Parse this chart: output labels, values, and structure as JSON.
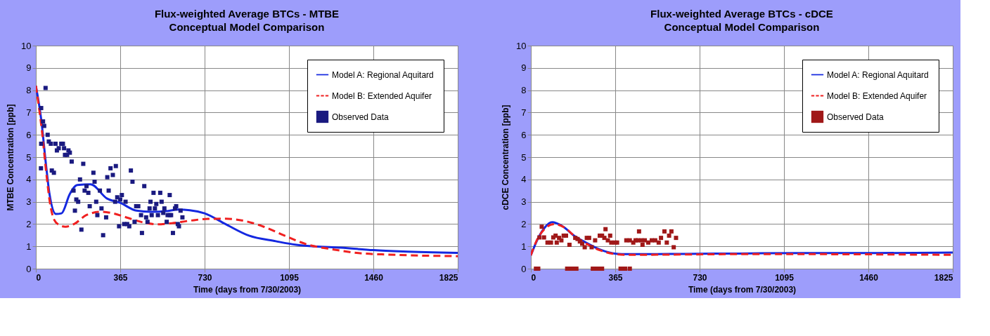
{
  "chart_data": [
    {
      "type": "line",
      "title": "Flux-weighted Average BTCs - MTBE",
      "subtitle": "Conceptual Model Comparison",
      "xlabel": "Time (days from 7/30/2003)",
      "ylabel": "MTBE Concentration [ppb]",
      "xlim": [
        0,
        1825
      ],
      "xticks": [
        0,
        365,
        730,
        1095,
        1460,
        1825
      ],
      "ylim": [
        0,
        10
      ],
      "yticks": [
        0,
        1,
        2,
        3,
        4,
        5,
        6,
        7,
        8,
        9,
        10
      ],
      "grid": true,
      "legend": "top right",
      "series": [
        {
          "name": "Model A: Regional Aquitard",
          "type": "line",
          "line_style": "solid",
          "color": "#1428e0",
          "x": [
            0,
            23,
            45,
            59,
            87,
            111,
            147,
            179,
            237,
            307,
            365,
            436,
            500,
            564,
            615,
            666,
            730,
            820,
            922,
            1038,
            1127,
            1204,
            1319,
            1460,
            1588,
            1825
          ],
          "values": [
            8.2,
            6.7,
            4.55,
            3.35,
            2.45,
            2.48,
            3.35,
            3.75,
            3.78,
            3.15,
            2.95,
            2.6,
            2.55,
            2.58,
            2.65,
            2.62,
            2.48,
            2.0,
            1.48,
            1.23,
            1.07,
            1.0,
            0.94,
            0.83,
            0.77,
            0.71
          ]
        },
        {
          "name": "Model B: Extended Aquifer",
          "type": "line",
          "line_style": "dashed",
          "color": "#f02020",
          "x": [
            0,
            26,
            45,
            61,
            79,
            102,
            128,
            167,
            218,
            282,
            333,
            397,
            461,
            525,
            589,
            666,
            743,
            820,
            897,
            986,
            1076,
            1179,
            1281,
            1396,
            1524,
            1652,
            1825
          ],
          "values": [
            8.2,
            6.2,
            4.3,
            2.95,
            2.2,
            1.95,
            1.88,
            2.01,
            2.4,
            2.55,
            2.48,
            2.28,
            2.08,
            1.99,
            2.04,
            2.15,
            2.23,
            2.24,
            2.15,
            1.88,
            1.48,
            1.07,
            0.87,
            0.7,
            0.63,
            0.59,
            0.56
          ]
        },
        {
          "name": "Observed Data",
          "type": "scatter",
          "marker": "square",
          "color": "#1a1a80",
          "x": [
            42,
            23,
            31,
            36,
            23,
            22,
            51,
            56,
            65,
            69,
            78,
            85,
            91,
            99,
            110,
            117,
            122,
            126,
            135,
            141,
            147,
            155,
            163,
            169,
            175,
            183,
            191,
            197,
            205,
            211,
            219,
            227,
            233,
            249,
            254,
            261,
            266,
            277,
            284,
            291,
            304,
            315,
            309,
            323,
            333,
            346,
            343,
            352,
            360,
            372,
            365,
            382,
            388,
            395,
            404,
            411,
            418,
            427,
            434,
            443,
            455,
            459,
            469,
            477,
            483,
            492,
            496,
            501,
            509,
            515,
            521,
            528,
            538,
            544,
            551,
            556,
            566,
            570,
            579,
            579,
            585,
            593,
            602,
            607,
            614,
            619,
            626,
            634
          ],
          "values": [
            8.1,
            7.2,
            6.6,
            6.4,
            5.6,
            4.5,
            6.0,
            5.7,
            5.6,
            4.4,
            4.3,
            5.6,
            5.3,
            5.4,
            5.6,
            5.6,
            5.4,
            5.1,
            5.1,
            5.3,
            5.2,
            4.8,
            3.5,
            2.6,
            3.1,
            3.0,
            4.0,
            1.75,
            4.7,
            3.5,
            3.7,
            3.4,
            2.8,
            4.3,
            3.9,
            3.0,
            2.4,
            3.5,
            2.7,
            1.5,
            2.3,
            3.5,
            4.1,
            4.5,
            4.2,
            4.6,
            3.0,
            3.2,
            1.9,
            3.3,
            3.1,
            2.0,
            3.0,
            2.0,
            1.9,
            4.4,
            3.9,
            2.1,
            2.8,
            2.8,
            2.4,
            1.6,
            3.7,
            2.3,
            2.1,
            2.7,
            3.0,
            2.4,
            3.4,
            2.7,
            2.9,
            2.4,
            3.4,
            3.0,
            2.5,
            2.7,
            2.1,
            2.4,
            3.3,
            2.4,
            2.4,
            1.6,
            2.7,
            2.8,
            2.0,
            1.9,
            2.6,
            2.3
          ]
        }
      ]
    },
    {
      "type": "line",
      "title": "Flux-weighted Average BTCs - cDCE",
      "subtitle": "Conceptual Model Comparison",
      "xlabel": "Time (days from 7/30/2003)",
      "ylabel": "cDCE Concentration [ppb]",
      "xlim": [
        0,
        1825
      ],
      "xticks": [
        0,
        365,
        730,
        1095,
        1460,
        1825
      ],
      "ylim": [
        0,
        10
      ],
      "yticks": [
        0,
        1,
        2,
        3,
        4,
        5,
        6,
        7,
        8,
        9,
        10
      ],
      "grid": true,
      "legend": "top right",
      "series": [
        {
          "name": "Model A: Regional Aquitard",
          "type": "line",
          "line_style": "solid",
          "color": "#1428e0",
          "x": [
            0,
            27,
            57,
            92,
            137,
            187,
            238,
            298,
            368,
            418,
            600,
            900,
            1200,
            1500,
            1825
          ],
          "values": [
            0.6,
            1.27,
            1.8,
            2.08,
            1.9,
            1.48,
            1.17,
            0.86,
            0.67,
            0.65,
            0.66,
            0.68,
            0.7,
            0.7,
            0.72
          ]
        },
        {
          "name": "Model B: Extended Aquifer",
          "type": "line",
          "line_style": "dashed",
          "color": "#f02020",
          "x": [
            0,
            27,
            57,
            100,
            145,
            190,
            240,
            300,
            368,
            418,
            600,
            900,
            1200,
            1500,
            1825
          ],
          "values": [
            0.6,
            1.3,
            1.75,
            2.0,
            1.85,
            1.45,
            1.12,
            0.82,
            0.65,
            0.62,
            0.63,
            0.65,
            0.65,
            0.64,
            0.62
          ]
        },
        {
          "name": "Observed Data",
          "type": "scatter",
          "marker": "square",
          "color": "#a01818",
          "x": [
            47,
            37,
            57,
            72,
            87,
            97,
            107,
            112,
            122,
            132,
            142,
            152,
            167,
            192,
            202,
            212,
            222,
            233,
            242,
            252,
            263,
            278,
            298,
            308,
            323,
            318,
            333,
            343,
            348,
            363,
            373,
            413,
            428,
            443,
            453,
            468,
            463,
            478,
            483,
            493,
            508,
            523,
            538,
            553,
            563,
            578,
            588,
            598,
            608,
            618,
            628,
            22,
            32,
            157,
            167,
            177,
            187,
            197,
            268,
            278,
            288,
            298,
            308,
            388,
            398,
            408,
            428
          ],
          "values": [
            1.88,
            1.4,
            1.4,
            1.17,
            1.17,
            1.4,
            1.48,
            1.17,
            1.38,
            1.27,
            1.48,
            1.48,
            1.07,
            1.38,
            1.33,
            1.22,
            1.12,
            0.96,
            1.38,
            1.38,
            0.96,
            1.27,
            1.48,
            1.48,
            1.77,
            1.38,
            1.27,
            1.48,
            1.17,
            1.17,
            1.17,
            1.27,
            1.27,
            1.17,
            1.27,
            1.67,
            1.27,
            1.27,
            1.07,
            1.27,
            1.17,
            1.27,
            1.27,
            1.17,
            1.38,
            1.67,
            1.17,
            1.48,
            1.67,
            0.96,
            1.38,
            0,
            0,
            0,
            0,
            0,
            0,
            0,
            0,
            0,
            0,
            0,
            0,
            0,
            0,
            0,
            0
          ]
        }
      ]
    }
  ]
}
